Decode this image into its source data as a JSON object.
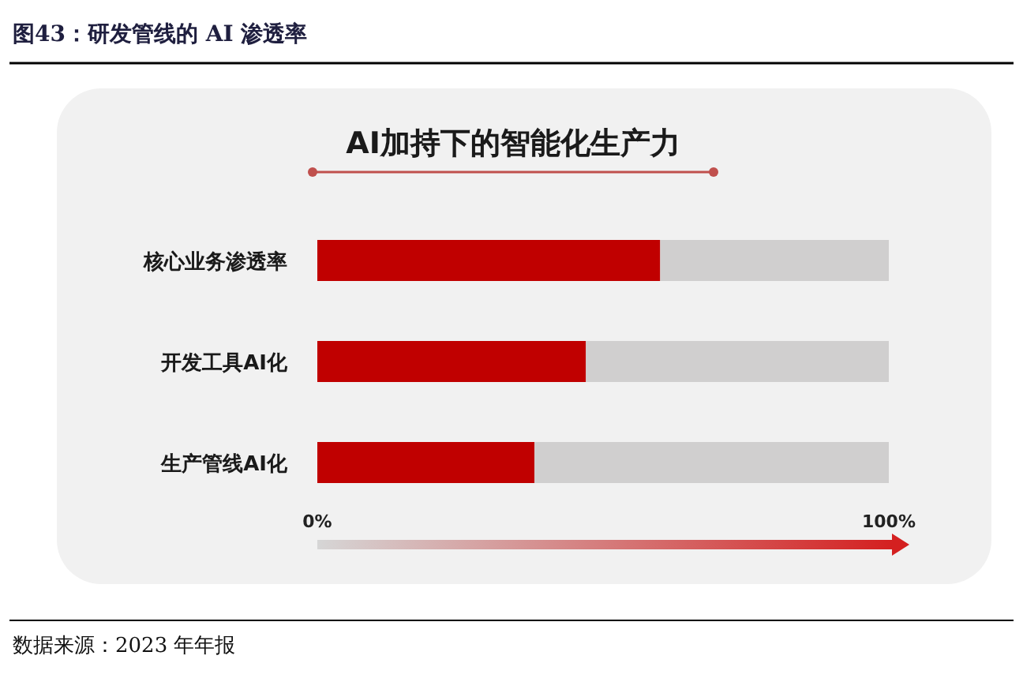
{
  "chart_data": {
    "type": "bar",
    "title": "图43：研发管线的 AI 渗透率",
    "subtitle": "AI加持下的智能化生产力",
    "orientation": "horizontal",
    "stacked": true,
    "categories": [
      "核心业务渗透率",
      "开发工具AI化",
      "生产管线AI化"
    ],
    "series": [
      {
        "color": "#c00000",
        "values": [
          60,
          47,
          38
        ]
      },
      {
        "color": "#d0cfcf",
        "values": [
          40,
          53,
          62
        ]
      }
    ],
    "xlim": [
      0,
      100
    ],
    "xticks": [
      {
        "value": 0,
        "label": "0%"
      },
      {
        "value": 100,
        "label": "100%"
      }
    ],
    "annotations": [
      "数据来源：2023 年年报"
    ]
  }
}
